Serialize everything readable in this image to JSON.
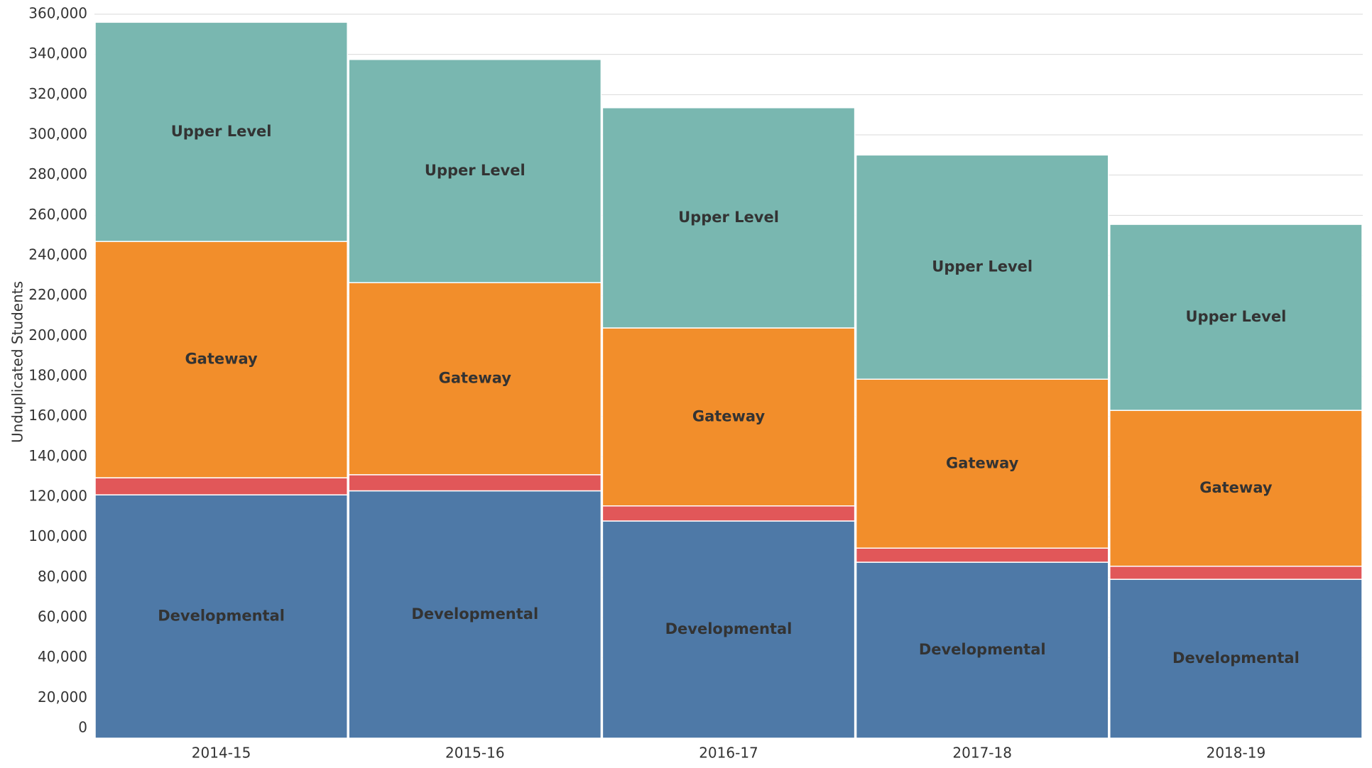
{
  "chart_data": {
    "type": "stacked_bar",
    "y_label": "Unduplicated Students",
    "categories": [
      "2014-15",
      "2015-16",
      "2016-17",
      "2017-18",
      "2018-19"
    ],
    "series": [
      {
        "name": "Developmental",
        "color": "#4e79a7",
        "values": [
          121000,
          123000,
          108000,
          87500,
          79000
        ]
      },
      {
        "color": "#e15759",
        "values": [
          8500,
          8000,
          7500,
          7000,
          6500
        ]
      },
      {
        "name": "Gateway",
        "color": "#f28e2b",
        "values": [
          117500,
          95500,
          88500,
          84000,
          77500
        ]
      },
      {
        "name": "Upper Level",
        "color": "#79b7b0",
        "values": [
          109000,
          111000,
          109500,
          111500,
          92500
        ]
      }
    ],
    "ylim": [
      0,
      360000
    ],
    "yticks": [
      0,
      {
        "value": 20000,
        "label": "20,000"
      },
      {
        "value": 40000,
        "label": "40,000"
      },
      {
        "value": 60000,
        "label": "60,000"
      },
      {
        "value": 80000,
        "label": "80,000"
      },
      {
        "value": 100000,
        "label": "100,000"
      },
      {
        "value": 120000,
        "label": "120,000"
      },
      {
        "value": 140000,
        "label": "140,000"
      },
      {
        "value": 160000,
        "label": "160,000"
      },
      {
        "value": 180000,
        "label": "180,000"
      },
      {
        "value": 200000,
        "label": "200,000"
      },
      {
        "value": 220000,
        "label": "220,000"
      },
      {
        "value": 240000,
        "label": "240,000"
      },
      {
        "value": 260000,
        "label": "260,000"
      },
      {
        "value": 280000,
        "label": "280,000"
      },
      {
        "value": 300000,
        "label": "300,000"
      },
      {
        "value": 320000,
        "label": "320,000"
      },
      {
        "value": 340000,
        "label": "340,000"
      },
      {
        "value": 360000,
        "label": "360,000"
      }
    ],
    "grid": true
  }
}
